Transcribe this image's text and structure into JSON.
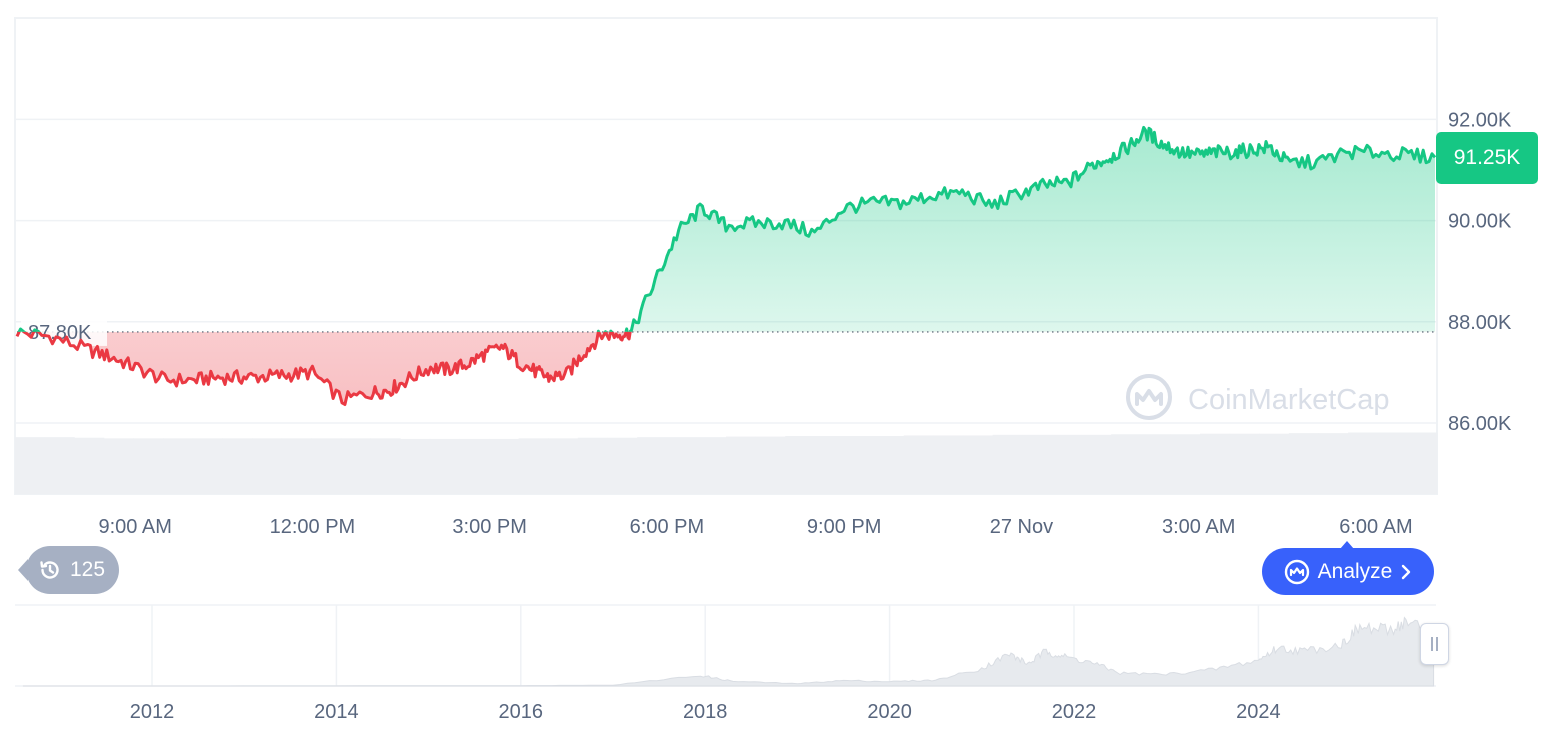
{
  "chart_data": {
    "type": "area",
    "baseline": {
      "value": 87.8,
      "label": "87.80K"
    },
    "current_price": {
      "value": 91.25,
      "label": "91.25K"
    },
    "y_axis": {
      "ylim": [
        84.0,
        94.0
      ],
      "ticks": [
        92.0,
        90.0,
        88.0,
        86.0
      ],
      "tick_labels": [
        "92.00K",
        "90.00K",
        "88.00K",
        "86.00K"
      ]
    },
    "x_axis": {
      "xlim": [
        7.0,
        31.0
      ],
      "ticks": [
        9,
        12,
        15,
        18,
        21,
        24,
        27,
        30
      ],
      "tick_labels": [
        "9:00 AM",
        "12:00 PM",
        "3:00 PM",
        "6:00 PM",
        "9:00 PM",
        "27 Nov",
        "3:00 AM",
        "6:00 AM"
      ]
    },
    "series": [
      {
        "x": [
          7.0,
          7.6,
          8.2,
          8.6,
          9.0,
          9.5,
          10.0,
          10.4,
          10.8,
          11.2,
          11.6,
          12.0,
          12.5,
          13.0,
          13.3,
          13.6,
          14.0,
          14.3,
          14.6,
          14.9,
          15.2,
          15.5,
          15.8,
          16.0,
          16.3,
          16.6,
          16.9,
          17.2,
          17.4,
          17.8,
          18.2,
          18.6,
          19.0,
          19.5,
          20.0,
          20.5,
          21.0,
          21.5,
          22.0,
          22.5,
          23.0,
          23.5,
          24.0,
          24.4,
          24.8,
          25.2,
          25.5,
          25.8,
          26.1,
          26.4,
          26.7,
          27.0,
          27.3,
          27.6,
          27.9,
          28.2,
          28.5,
          29.0,
          29.5,
          30.0,
          30.5,
          31.0
        ],
        "y": [
          87.8,
          87.7,
          87.45,
          87.3,
          87.1,
          86.85,
          86.85,
          86.9,
          86.9,
          86.92,
          86.95,
          87.0,
          86.45,
          86.6,
          86.65,
          86.85,
          87.1,
          87.05,
          87.15,
          87.35,
          87.5,
          87.2,
          87.0,
          86.9,
          86.95,
          87.4,
          87.75,
          87.75,
          87.8,
          88.8,
          89.8,
          90.25,
          89.9,
          89.95,
          89.95,
          89.75,
          90.25,
          90.35,
          90.35,
          90.5,
          90.55,
          90.3,
          90.55,
          90.7,
          90.75,
          91.1,
          91.25,
          91.45,
          91.75,
          91.5,
          91.35,
          91.3,
          91.35,
          91.35,
          91.4,
          91.45,
          91.15,
          91.15,
          91.35,
          91.35,
          91.3,
          91.25
        ]
      }
    ],
    "volume": {
      "label": "",
      "relative_levels": [
        0.98,
        0.98,
        0.97,
        0.96,
        0.96,
        0.96,
        0.96,
        0.96,
        0.96,
        0.96,
        0.96,
        0.96,
        0.96,
        0.95,
        0.95,
        0.95,
        0.95,
        0.96,
        0.96,
        0.97,
        0.97,
        0.98,
        0.98,
        0.98,
        0.99,
        0.99,
        1.0,
        1.0,
        1.0,
        1.0,
        1.01,
        1.01,
        1.01,
        1.02,
        1.02,
        1.02,
        1.02,
        1.03,
        1.03,
        1.03,
        1.04,
        1.04,
        1.04,
        1.05,
        1.05,
        1.06,
        1.06,
        1.06
      ]
    },
    "navigator": {
      "tick_labels": [
        "2012",
        "2014",
        "2016",
        "2018",
        "2020",
        "2022",
        "2024"
      ],
      "tick_years": [
        2012,
        2014,
        2016,
        2018,
        2020,
        2022,
        2024
      ],
      "xlim": [
        2010.6,
        2025.9
      ],
      "years": [
        2010.6,
        2013.0,
        2016.0,
        2017.0,
        2017.95,
        2018.3,
        2019.0,
        2019.5,
        2020.0,
        2020.5,
        2021.0,
        2021.3,
        2021.5,
        2021.7,
        2021.9,
        2022.2,
        2022.5,
        2023.0,
        2023.5,
        2024.0,
        2024.2,
        2024.5,
        2024.9,
        2025.1,
        2025.4,
        2025.6,
        2025.9
      ],
      "values": [
        0.0,
        0.1,
        0.5,
        1.5,
        18.0,
        8.0,
        4.0,
        9.5,
        7.5,
        10.0,
        30.0,
        55.0,
        38.0,
        60.0,
        50.0,
        40.0,
        22.0,
        20.0,
        28.0,
        44.0,
        65.0,
        60.0,
        72.0,
        100.0,
        95.0,
        110.0,
        92.0
      ]
    }
  },
  "watermark": {
    "text": "CoinMarketCap"
  },
  "history": {
    "count": "125",
    "icon": "history-icon"
  },
  "analyze": {
    "label": "Analyze",
    "icon": "cmc-ai-icon"
  },
  "colors": {
    "up": "#16c784",
    "down": "#ea3943",
    "accent": "#3861fb",
    "muted": "#a6b0c3"
  }
}
